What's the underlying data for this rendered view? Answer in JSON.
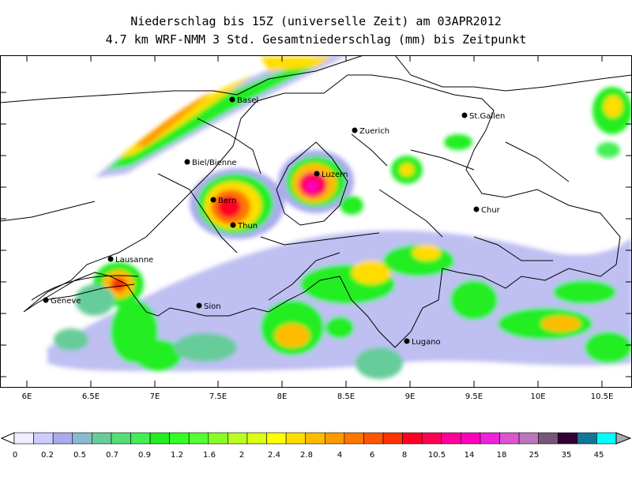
{
  "header": {
    "title_line1": "Niederschlag bis 15Z (universelle Zeit) am 03APR2012",
    "title_line2": "4.7 km WRF-NMM 3 Std. Gesamtniederschlag (mm) bis Zeitpunkt"
  },
  "map": {
    "lon_ticks": [
      "6E",
      "6.5E",
      "7E",
      "7.5E",
      "8E",
      "8.5E",
      "9E",
      "9.5E",
      "10E",
      "10.5E"
    ],
    "cities": [
      {
        "name": "Basel"
      },
      {
        "name": "Zuerich"
      },
      {
        "name": "St.Gallen"
      },
      {
        "name": "Biel/Bienne"
      },
      {
        "name": "Luzern"
      },
      {
        "name": "Bern"
      },
      {
        "name": "Chur"
      },
      {
        "name": "Thun"
      },
      {
        "name": "Lausanne"
      },
      {
        "name": "Geneve"
      },
      {
        "name": "Sion"
      },
      {
        "name": "Lugano"
      }
    ]
  },
  "legend": {
    "labels": [
      "0",
      "0.2",
      "0.5",
      "0.7",
      "0.9",
      "1.2",
      "1.6",
      "2",
      "2.4",
      "2.8",
      "4",
      "6",
      "8",
      "10.5",
      "14",
      "18",
      "25",
      "35",
      "45"
    ],
    "colors": [
      "#eeeeff",
      "#ccccff",
      "#aaaaee",
      "#88bbcc",
      "#66cc99",
      "#55dd77",
      "#44ee55",
      "#22ee22",
      "#33ff22",
      "#55ff33",
      "#88ff22",
      "#bbff22",
      "#ddff11",
      "#ffff00",
      "#ffdd00",
      "#ffbb00",
      "#ff9900",
      "#ff7700",
      "#ff5500",
      "#ff3300",
      "#ff0022",
      "#ff0055",
      "#ff0099",
      "#ff00bb",
      "#ee22dd",
      "#dd55cc",
      "#bb77bb",
      "#775577",
      "#330033",
      "#117799",
      "#00ffff"
    ]
  }
}
